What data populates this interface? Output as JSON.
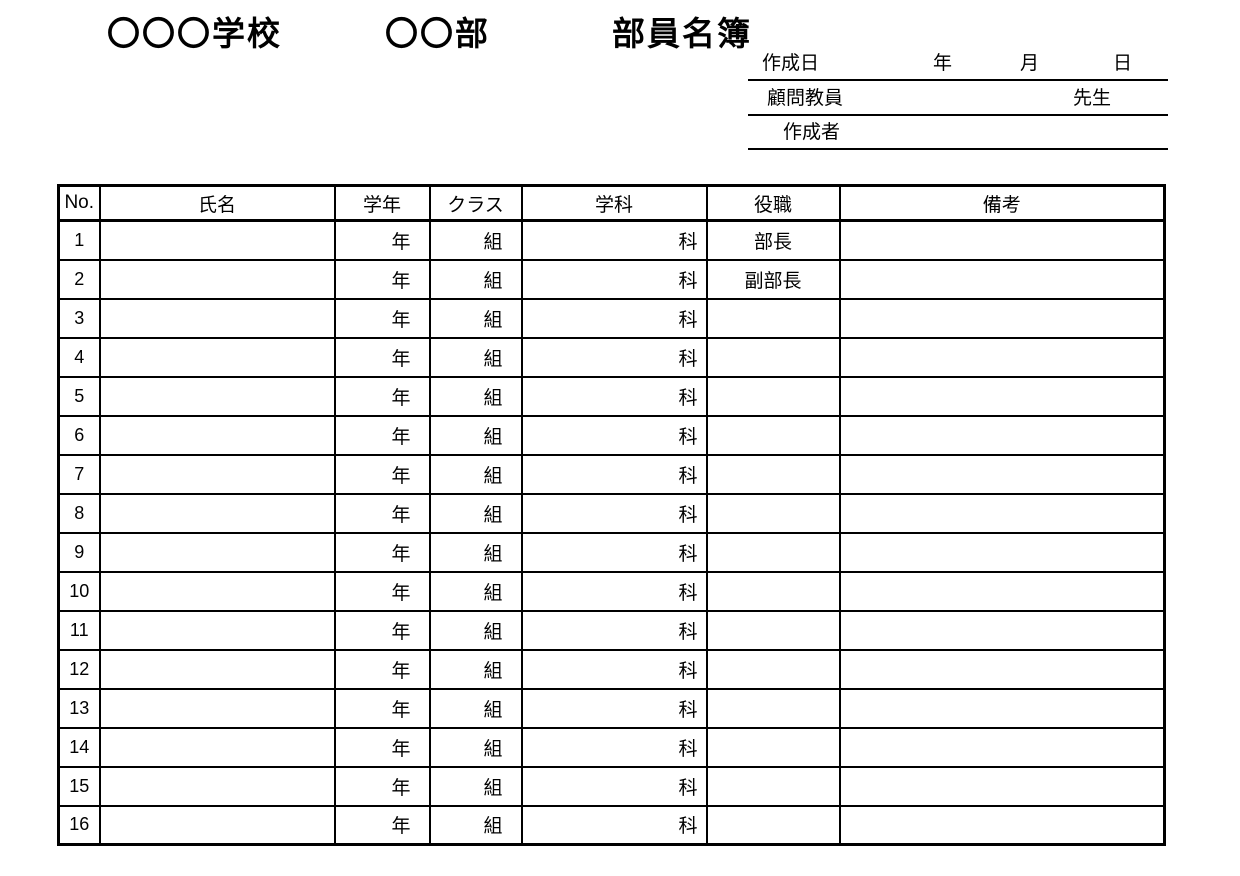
{
  "page": {
    "background_color": "#ffffff",
    "text_color": "#000000",
    "border_color": "#000000"
  },
  "title": {
    "school": "〇〇〇学校",
    "club": "〇〇部",
    "document": "部員名簿"
  },
  "info": {
    "created": {
      "label": "作成日",
      "year_suffix": "年",
      "month_suffix": "月",
      "day_suffix": "日"
    },
    "advisor": {
      "label": "顧問教員",
      "teacher_suffix": "先生"
    },
    "author": {
      "label": "作成者"
    }
  },
  "table": {
    "headers": [
      "No.",
      "氏名",
      "学年",
      "クラス",
      "学科",
      "役職",
      "備考"
    ],
    "rows": [
      {
        "no": "1",
        "name": "",
        "grade_suffix": "年",
        "class_suffix": "組",
        "dept_suffix": "科",
        "role": "部長",
        "note": ""
      },
      {
        "no": "2",
        "name": "",
        "grade_suffix": "年",
        "class_suffix": "組",
        "dept_suffix": "科",
        "role": "副部長",
        "note": ""
      },
      {
        "no": "3",
        "name": "",
        "grade_suffix": "年",
        "class_suffix": "組",
        "dept_suffix": "科",
        "role": "",
        "note": ""
      },
      {
        "no": "4",
        "name": "",
        "grade_suffix": "年",
        "class_suffix": "組",
        "dept_suffix": "科",
        "role": "",
        "note": ""
      },
      {
        "no": "5",
        "name": "",
        "grade_suffix": "年",
        "class_suffix": "組",
        "dept_suffix": "科",
        "role": "",
        "note": ""
      },
      {
        "no": "6",
        "name": "",
        "grade_suffix": "年",
        "class_suffix": "組",
        "dept_suffix": "科",
        "role": "",
        "note": ""
      },
      {
        "no": "7",
        "name": "",
        "grade_suffix": "年",
        "class_suffix": "組",
        "dept_suffix": "科",
        "role": "",
        "note": ""
      },
      {
        "no": "8",
        "name": "",
        "grade_suffix": "年",
        "class_suffix": "組",
        "dept_suffix": "科",
        "role": "",
        "note": ""
      },
      {
        "no": "9",
        "name": "",
        "grade_suffix": "年",
        "class_suffix": "組",
        "dept_suffix": "科",
        "role": "",
        "note": ""
      },
      {
        "no": "10",
        "name": "",
        "grade_suffix": "年",
        "class_suffix": "組",
        "dept_suffix": "科",
        "role": "",
        "note": ""
      },
      {
        "no": "11",
        "name": "",
        "grade_suffix": "年",
        "class_suffix": "組",
        "dept_suffix": "科",
        "role": "",
        "note": ""
      },
      {
        "no": "12",
        "name": "",
        "grade_suffix": "年",
        "class_suffix": "組",
        "dept_suffix": "科",
        "role": "",
        "note": ""
      },
      {
        "no": "13",
        "name": "",
        "grade_suffix": "年",
        "class_suffix": "組",
        "dept_suffix": "科",
        "role": "",
        "note": ""
      },
      {
        "no": "14",
        "name": "",
        "grade_suffix": "年",
        "class_suffix": "組",
        "dept_suffix": "科",
        "role": "",
        "note": ""
      },
      {
        "no": "15",
        "name": "",
        "grade_suffix": "年",
        "class_suffix": "組",
        "dept_suffix": "科",
        "role": "",
        "note": ""
      },
      {
        "no": "16",
        "name": "",
        "grade_suffix": "年",
        "class_suffix": "組",
        "dept_suffix": "科",
        "role": "",
        "note": ""
      }
    ]
  }
}
